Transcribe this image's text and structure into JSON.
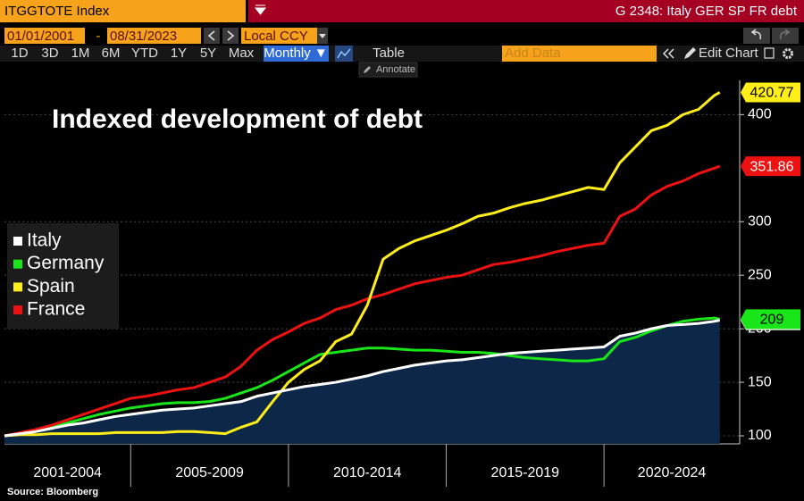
{
  "toolbar": {
    "ticker": "ITGGTOTE Index",
    "page": "G 2348: Italy GER SP FR debt",
    "start_date": "01/01/2001",
    "date_separator": "-",
    "end_date": "08/31/2023",
    "currency": "Local CCY",
    "periods": [
      "1D",
      "3D",
      "1M",
      "6M",
      "YTD",
      "1Y",
      "5Y",
      "Max"
    ],
    "frequency": "Monthly ▼",
    "table": "Table",
    "annotate": "Annotate",
    "add_data": "Add Data",
    "edit_chart": "Edit Chart"
  },
  "chart_data": {
    "type": "line",
    "title": "Indexed development of debt",
    "source": "Source: Bloomberg",
    "x": [
      2001,
      2001.5,
      2002,
      2002.5,
      2003,
      2003.5,
      2004,
      2004.5,
      2005,
      2005.5,
      2006,
      2006.5,
      2007,
      2007.5,
      2008,
      2008.5,
      2009,
      2009.5,
      2010,
      2010.5,
      2011,
      2011.5,
      2012,
      2012.5,
      2013,
      2013.5,
      2014,
      2014.5,
      2015,
      2015.5,
      2016,
      2016.5,
      2017,
      2017.5,
      2018,
      2018.5,
      2019,
      2019.5,
      2020,
      2020.5,
      2021,
      2021.5,
      2022,
      2022.5,
      2023,
      2023.5,
      2023.67
    ],
    "xlim": [
      2001,
      2024.3
    ],
    "x_periods": [
      {
        "label": "2001-2004",
        "start": 2001,
        "end": 2005
      },
      {
        "label": "2005-2009",
        "start": 2005,
        "end": 2010
      },
      {
        "label": "2010-2014",
        "start": 2010,
        "end": 2015
      },
      {
        "label": "2015-2019",
        "start": 2015,
        "end": 2020
      },
      {
        "label": "2020-2024",
        "start": 2020,
        "end": 2025
      }
    ],
    "ylim": [
      92.5,
      432
    ],
    "yticks": [
      100,
      150,
      200,
      250,
      300,
      400
    ],
    "grid": true,
    "series": [
      {
        "name": "Italy",
        "color": "#ffffff",
        "area_color": "#0c2747",
        "label_text_color": "#000000",
        "values": [
          100,
          102,
          104,
          107,
          110,
          112,
          115,
          118,
          120,
          122,
          124,
          125,
          126,
          128,
          130,
          132,
          137,
          140,
          143,
          146,
          148,
          150,
          153,
          156,
          160,
          163,
          166,
          168,
          170,
          171,
          173,
          175,
          177,
          178,
          179,
          180,
          181,
          182,
          183,
          193,
          196,
          200,
          203,
          204,
          205,
          207,
          207.97
        ]
      },
      {
        "name": "Germany",
        "color": "#19e619",
        "label_text_color": "#000000",
        "values": [
          100,
          102,
          105,
          108,
          112,
          116,
          120,
          123,
          126,
          128,
          130,
          131,
          131,
          132,
          135,
          140,
          145,
          152,
          160,
          168,
          176,
          178,
          180,
          182,
          182,
          181,
          180,
          180,
          179,
          178,
          178,
          177,
          175,
          173,
          172,
          171,
          170,
          170,
          172,
          188,
          192,
          198,
          203,
          207,
          209,
          210,
          209
        ]
      },
      {
        "name": "Spain",
        "color": "#ffee1a",
        "label_text_color": "#000000",
        "values": [
          100,
          101,
          101,
          102,
          102,
          102,
          102,
          103,
          103,
          103,
          103,
          104,
          104,
          103,
          102,
          108,
          113,
          132,
          150,
          162,
          170,
          188,
          195,
          222,
          265,
          275,
          282,
          287,
          292,
          298,
          305,
          308,
          313,
          317,
          320,
          324,
          328,
          332,
          330,
          355,
          370,
          385,
          390,
          400,
          405,
          418,
          420.77
        ]
      },
      {
        "name": "France",
        "color": "#ee1111",
        "label_text_color": "#ffffff",
        "values": [
          100,
          103,
          106,
          110,
          115,
          120,
          125,
          130,
          135,
          137,
          140,
          143,
          145,
          150,
          155,
          165,
          180,
          190,
          197,
          205,
          210,
          218,
          222,
          228,
          232,
          237,
          242,
          245,
          248,
          250,
          255,
          260,
          262,
          265,
          268,
          272,
          275,
          278,
          280,
          305,
          312,
          325,
          333,
          338,
          345,
          350,
          351.86
        ]
      }
    ]
  }
}
